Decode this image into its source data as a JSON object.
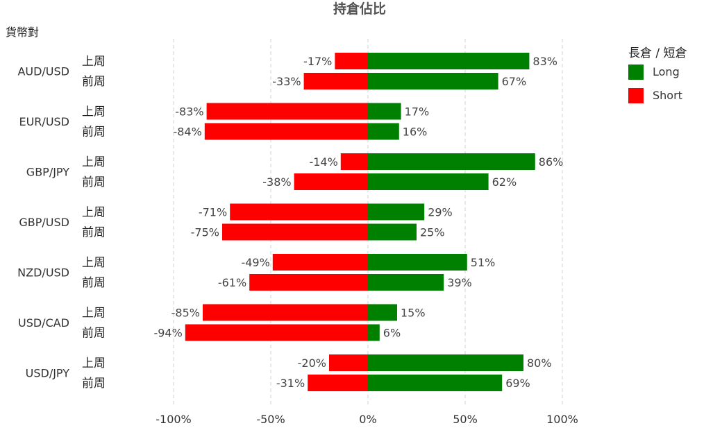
{
  "chart_data": {
    "type": "bar",
    "orientation": "horizontal",
    "stacked": "diverging",
    "title": "持倉佔比",
    "ylabel": "貨幣對",
    "xlim": [
      -100,
      100
    ],
    "xticks": [
      "-100%",
      "-50%",
      "0%",
      "50%",
      "100%"
    ],
    "xtick_values": [
      -100,
      -50,
      0,
      50,
      100
    ],
    "grid": "vertical-dashed",
    "legend": {
      "title": "長倉 / 短倉",
      "position": "top-right",
      "items": [
        {
          "name": "Long",
          "color": "#008000"
        },
        {
          "name": "Short",
          "color": "#ff0000"
        }
      ]
    },
    "periods": [
      "上周",
      "前周"
    ],
    "pairs": [
      {
        "name": "AUD/USD",
        "rows": [
          {
            "period": "上周",
            "long": 83,
            "short": -17,
            "long_label": "83%",
            "short_label": "-17%"
          },
          {
            "period": "前周",
            "long": 67,
            "short": -33,
            "long_label": "67%",
            "short_label": "-33%"
          }
        ]
      },
      {
        "name": "EUR/USD",
        "rows": [
          {
            "period": "上周",
            "long": 17,
            "short": -83,
            "long_label": "17%",
            "short_label": "-83%"
          },
          {
            "period": "前周",
            "long": 16,
            "short": -84,
            "long_label": "16%",
            "short_label": "-84%"
          }
        ]
      },
      {
        "name": "GBP/JPY",
        "rows": [
          {
            "period": "上周",
            "long": 86,
            "short": -14,
            "long_label": "86%",
            "short_label": "-14%"
          },
          {
            "period": "前周",
            "long": 62,
            "short": -38,
            "long_label": "62%",
            "short_label": "-38%"
          }
        ]
      },
      {
        "name": "GBP/USD",
        "rows": [
          {
            "period": "上周",
            "long": 29,
            "short": -71,
            "long_label": "29%",
            "short_label": "-71%"
          },
          {
            "period": "前周",
            "long": 25,
            "short": -75,
            "long_label": "25%",
            "short_label": "-75%"
          }
        ]
      },
      {
        "name": "NZD/USD",
        "rows": [
          {
            "period": "上周",
            "long": 51,
            "short": -49,
            "long_label": "51%",
            "short_label": "-49%"
          },
          {
            "period": "前周",
            "long": 39,
            "short": -61,
            "long_label": "39%",
            "short_label": "-61%"
          }
        ]
      },
      {
        "name": "USD/CAD",
        "rows": [
          {
            "period": "上周",
            "long": 15,
            "short": -85,
            "long_label": "15%",
            "short_label": "-85%"
          },
          {
            "period": "前周",
            "long": 6,
            "short": -94,
            "long_label": "6%",
            "short_label": "-94%"
          }
        ]
      },
      {
        "name": "USD/JPY",
        "rows": [
          {
            "period": "上周",
            "long": 80,
            "short": -20,
            "long_label": "80%",
            "short_label": "-20%"
          },
          {
            "period": "前周",
            "long": 69,
            "short": -31,
            "long_label": "69%",
            "short_label": "-31%"
          }
        ]
      }
    ]
  }
}
